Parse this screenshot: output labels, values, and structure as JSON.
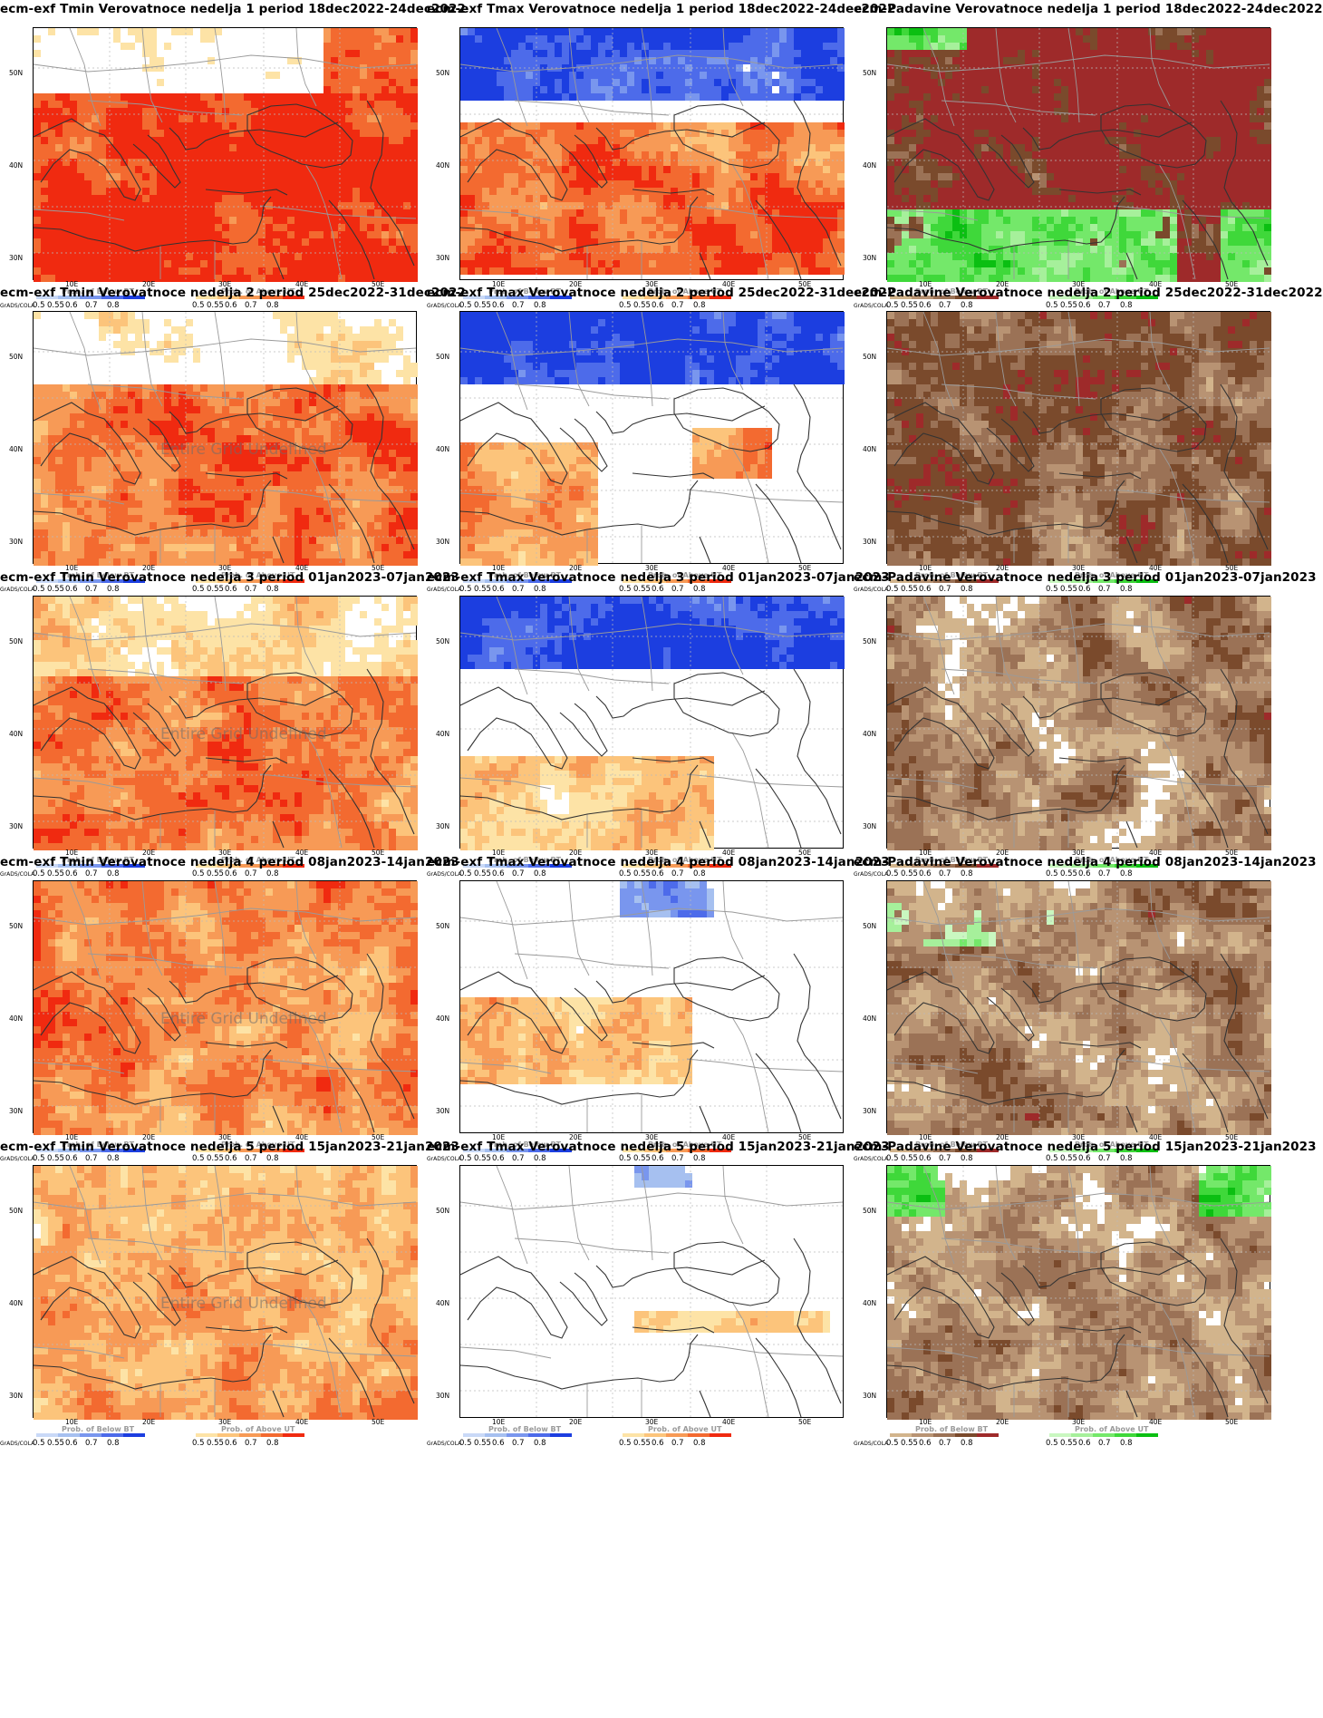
{
  "colors": {
    "below_scale": [
      "#c9d9f7",
      "#a6c0f0",
      "#7996ee",
      "#4d6bea",
      "#1c3ee0"
    ],
    "above_scale": [
      "#fde3a6",
      "#fcc47b",
      "#f79a56",
      "#f36a30",
      "#f02a10"
    ],
    "dry_scale": [
      "#d2b48c",
      "#b89373",
      "#9b7256",
      "#7a4a2c",
      "#9e2a2a"
    ],
    "wet_scale": [
      "#c9f7c0",
      "#a6f09b",
      "#74e86a",
      "#3fd83a",
      "#0bbf12"
    ],
    "border_color": "#9a9a9a",
    "coast_color": "#333333"
  },
  "axes": {
    "lat_labels": [
      "50N",
      "40N",
      "30N"
    ],
    "lon_labels": [
      "10E",
      "20E",
      "30E",
      "40E",
      "50E"
    ]
  },
  "legend": {
    "grads_label": "GrADS/COLA",
    "ticks": [
      "0.5",
      "0.55",
      "0.6",
      "0.7",
      "0.8"
    ],
    "below_title": "Prob. of Below BT",
    "above_title": "Prob. of Above UT"
  },
  "undefined_text": "Entire Grid Undefined",
  "panels": [
    {
      "title": "ecm-exf Tmin Verovatnoce nedelja 1 period 18dec2022-24dec2022",
      "var": "tmin",
      "week": 1,
      "undef": false,
      "left_legend": "temp"
    },
    {
      "title": "ecm-exf Tmax Verovatnoce nedelja 1 period 18dec2022-24dec2022",
      "var": "tmax",
      "week": 1,
      "undef": false,
      "left_legend": "temp"
    },
    {
      "title": "ecm-Padavine Verovatnoce nedelja 1 period 18dec2022-24dec2022",
      "var": "prec",
      "week": 1,
      "undef": false,
      "left_legend": "prec"
    },
    {
      "title": "ecm-exf Tmin Verovatnoce nedelja 2 period 25dec2022-31dec2022",
      "var": "tmin",
      "week": 2,
      "undef": true,
      "left_legend": "temp"
    },
    {
      "title": "ecm-exf Tmax Verovatnoce nedelja 2 period 25dec2022-31dec2022",
      "var": "tmax",
      "week": 2,
      "undef": false,
      "left_legend": "temp"
    },
    {
      "title": "ecm-Padavine Verovatnoce nedelja 2 period 25dec2022-31dec2022",
      "var": "prec",
      "week": 2,
      "undef": false,
      "left_legend": "prec"
    },
    {
      "title": "ecm-exf Tmin Verovatnoce nedelja 3 period 01jan2023-07jan2023",
      "var": "tmin",
      "week": 3,
      "undef": true,
      "left_legend": "temp"
    },
    {
      "title": "ecm-exf Tmax Verovatnoce nedelja 3 period 01jan2023-07jan2023",
      "var": "tmax",
      "week": 3,
      "undef": false,
      "left_legend": "temp"
    },
    {
      "title": "ecm-Padavine Verovatnoce nedelja 3 period 01jan2023-07jan2023",
      "var": "prec",
      "week": 3,
      "undef": false,
      "left_legend": "prec"
    },
    {
      "title": "ecm-exf Tmin Verovatnoce nedelja 4 period 08jan2023-14jan2023",
      "var": "tmin",
      "week": 4,
      "undef": true,
      "left_legend": "temp"
    },
    {
      "title": "ecm-exf Tmax Verovatnoce nedelja 4 period 08jan2023-14jan2023",
      "var": "tmax",
      "week": 4,
      "undef": false,
      "left_legend": "temp"
    },
    {
      "title": "ecm-Padavine Verovatnoce nedelja 4 period 08jan2023-14jan2023",
      "var": "prec",
      "week": 4,
      "undef": false,
      "left_legend": "prec"
    },
    {
      "title": "ecm-exf Tmin Verovatnoce nedelja 5 period 15jan2023-21jan2023",
      "var": "tmin",
      "week": 5,
      "undef": true,
      "left_legend": "temp"
    },
    {
      "title": "ecm-exf Tmax Verovatnoce nedelja 5 period 15jan2023-21jan2023",
      "var": "tmax",
      "week": 5,
      "undef": false,
      "left_legend": "temp"
    },
    {
      "title": "ecm-Padavine Verovatnoce nedelja 5 period 15jan2023-21jan2023",
      "var": "prec",
      "week": 5,
      "undef": false,
      "left_legend": "prec"
    }
  ]
}
